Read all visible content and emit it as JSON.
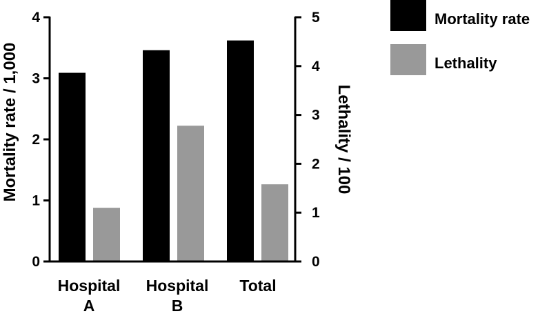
{
  "chart_data": {
    "type": "bar",
    "categories": [
      [
        "Hospital",
        "A"
      ],
      [
        "Hospital",
        "B"
      ],
      [
        "Total"
      ]
    ],
    "series": [
      {
        "name": "Mortality rate",
        "axis": "left",
        "color": "#000000",
        "values": [
          3.09,
          3.46,
          3.62
        ]
      },
      {
        "name": "Lethality",
        "axis": "right",
        "color": "#999999",
        "values": [
          1.1,
          2.78,
          1.58
        ]
      }
    ],
    "ylabel_left": "Mortality rate / 1,000",
    "ylabel_right": "Lethality / 100",
    "ylim_left": [
      0,
      4
    ],
    "ylim_right": [
      0,
      5
    ],
    "yticks_left": [
      "0",
      "1",
      "2",
      "3",
      "4"
    ],
    "yticks_right": [
      "0",
      "1",
      "2",
      "3",
      "4",
      "5"
    ],
    "legend_position": "top-right",
    "grid": false
  }
}
